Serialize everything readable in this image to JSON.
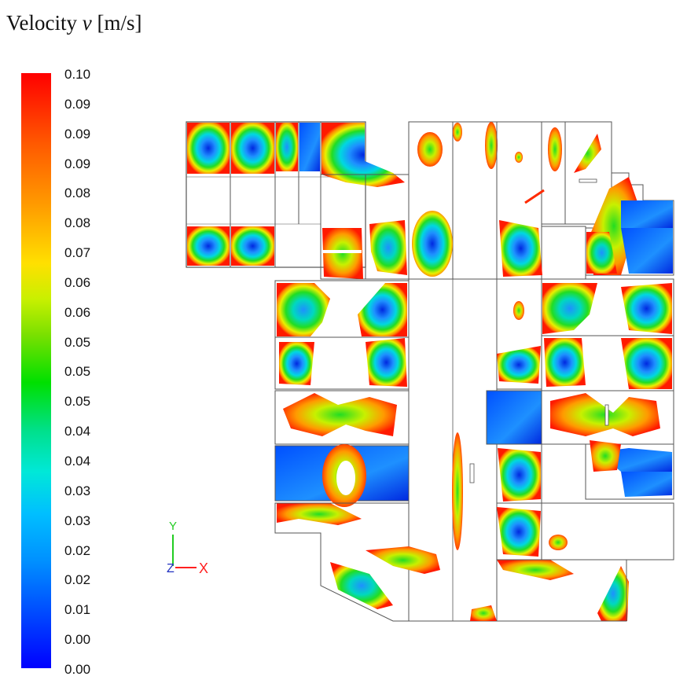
{
  "title": {
    "prefix": "Velocity ",
    "variable": "v",
    "unit": " [m/s]"
  },
  "colorbar": {
    "labels": [
      "0.10",
      "0.09",
      "0.09",
      "0.09",
      "0.08",
      "0.08",
      "0.07",
      "0.06",
      "0.06",
      "0.05",
      "0.05",
      "0.05",
      "0.04",
      "0.04",
      "0.03",
      "0.03",
      "0.02",
      "0.02",
      "0.01",
      "0.00",
      "0.00"
    ],
    "colors": {
      "max": "#ff0000",
      "mid_high": "#ff9a00",
      "mid": "#00e000",
      "mid_low": "#00bfff",
      "min": "#0000ff"
    }
  },
  "axes": {
    "y": "Y",
    "z": "Z",
    "x": "X"
  },
  "colors": {
    "wall": "#555555",
    "red": "#ff2a00",
    "orange": "#ff9a00",
    "yellow": "#e8f000",
    "green": "#22dd22",
    "cyan": "#00d8e0",
    "blue": "#1060ff",
    "deep_blue": "#0028e0"
  }
}
